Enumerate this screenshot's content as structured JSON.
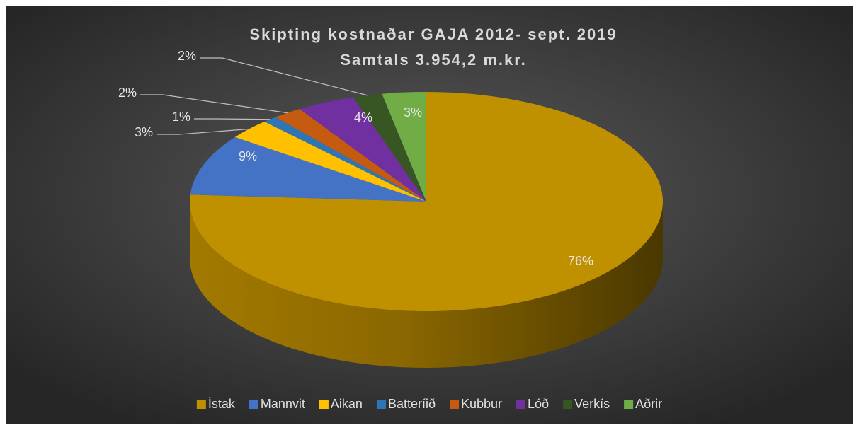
{
  "chart_data": {
    "type": "pie",
    "title": "Skipting kostnaðar GAJA 2012- sept. 2019",
    "subtitle": "Samtals 3.954,2 m.kr.",
    "categories": [
      "Ístak",
      "Mannvit",
      "Aikan",
      "Batteríið",
      "Kubbur",
      "Lóð",
      "Verkís",
      "Aðrir"
    ],
    "values": [
      76,
      9,
      3,
      1,
      2,
      4,
      2,
      3
    ],
    "value_labels": [
      "76%",
      "9%",
      "3%",
      "1%",
      "2%",
      "4%",
      "2%",
      "3%"
    ],
    "colors": [
      "#bf9000",
      "#4472c4",
      "#ffc000",
      "#2e75b6",
      "#c55a11",
      "#7030a0",
      "#375623",
      "#70ad47"
    ],
    "legend": "bottom"
  }
}
